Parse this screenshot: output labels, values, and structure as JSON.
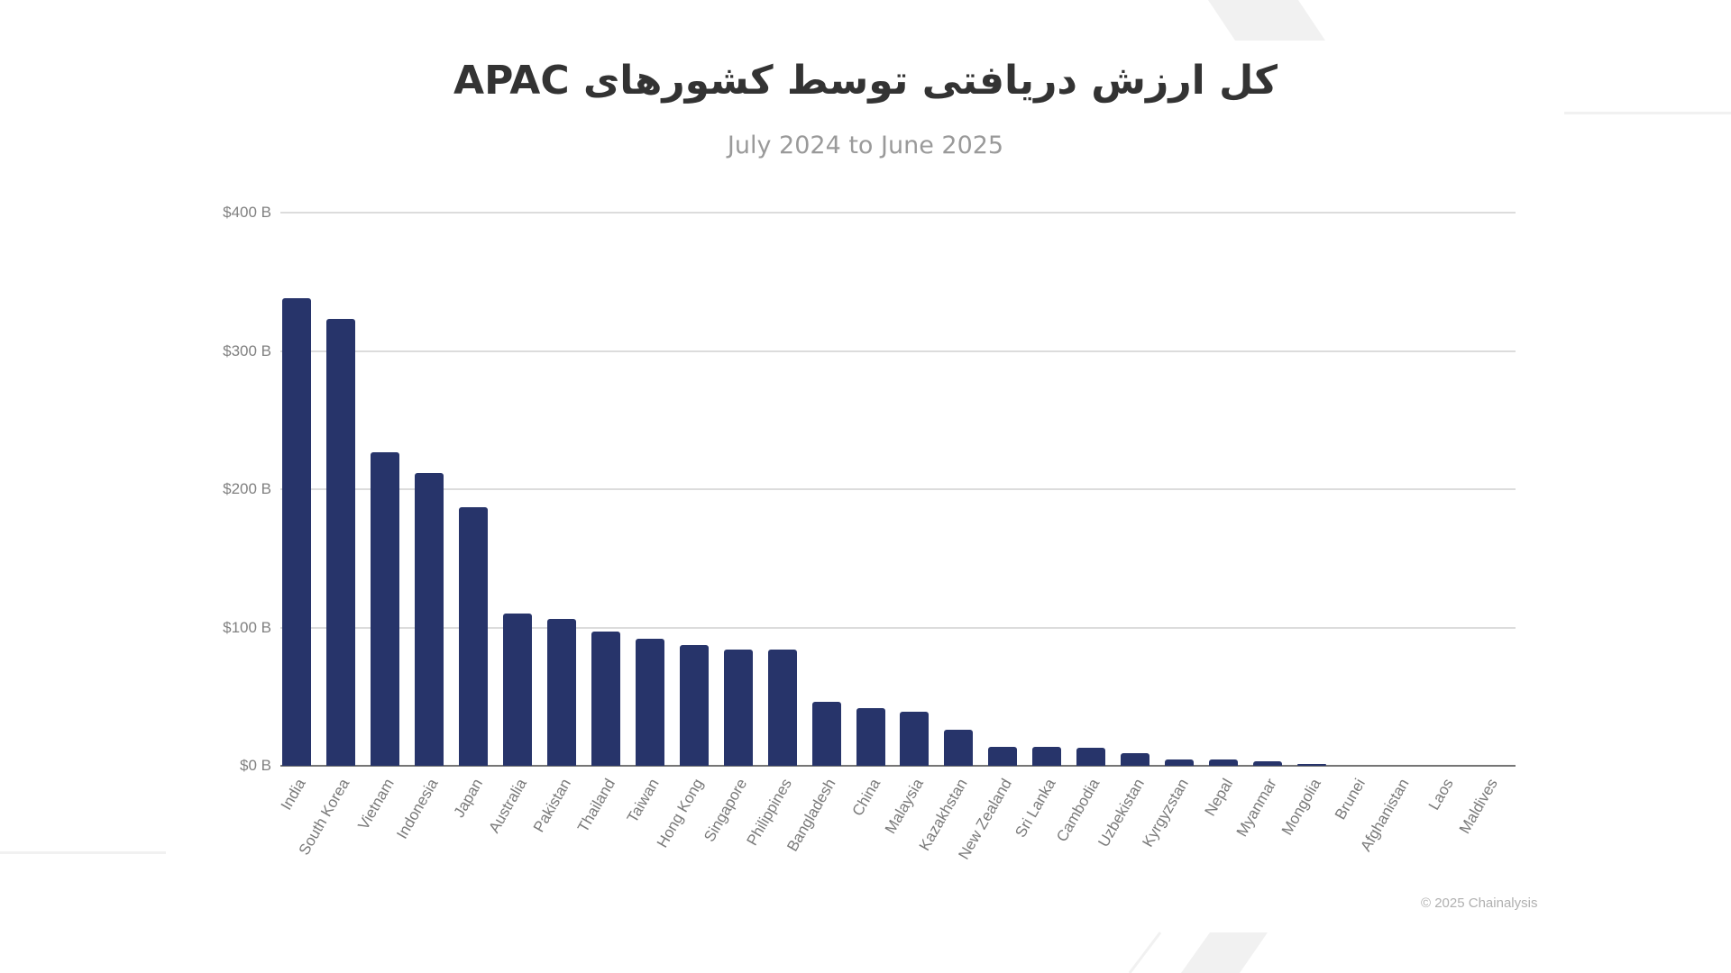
{
  "title": "کل ارزش دریافتی توسط کشورهای APAC",
  "subtitle": "July 2024 to June 2025",
  "credit": "© 2025 Chainalysis",
  "colors": {
    "bar": "#27346a",
    "gridline": "#dcdcdc",
    "axis": "#757575",
    "title": "#333333",
    "subtitle": "#9a9a9a",
    "decoration": "#f0f0f0"
  },
  "chart_data": {
    "type": "bar",
    "title": "کل ارزش دریافتی توسط کشورهای APAC",
    "subtitle": "July 2024 to June 2025",
    "xlabel": "",
    "ylabel": "",
    "ylim": [
      0,
      400
    ],
    "yticks": [
      0,
      100,
      200,
      300,
      400
    ],
    "ytick_labels": [
      "$0 B",
      "$100 B",
      "$200 B",
      "$300 B",
      "$400 B"
    ],
    "grid": true,
    "legend": null,
    "categories": [
      "India",
      "South Korea",
      "Vietnam",
      "Indonesia",
      "Japan",
      "Australia",
      "Pakistan",
      "Thailand",
      "Taiwan",
      "Hong Kong",
      "Singapore",
      "Philippines",
      "Bangladesh",
      "China",
      "Malaysia",
      "Kazakhstan",
      "New Zealand",
      "Sri Lanka",
      "Cambodia",
      "Uzbekistan",
      "Kyrgyzstan",
      "Nepal",
      "Myanmar",
      "Mongolia",
      "Brunei",
      "Afghanistan",
      "Laos",
      "Maldives"
    ],
    "values": [
      338,
      323,
      227,
      212,
      187,
      110,
      106,
      97,
      92,
      87,
      84,
      84,
      46,
      42,
      39,
      26,
      14,
      14,
      13,
      9,
      4.5,
      4.5,
      3,
      1,
      0,
      0,
      0,
      0
    ],
    "units": "USD billions",
    "annotations": [
      "© 2025 Chainalysis"
    ]
  }
}
